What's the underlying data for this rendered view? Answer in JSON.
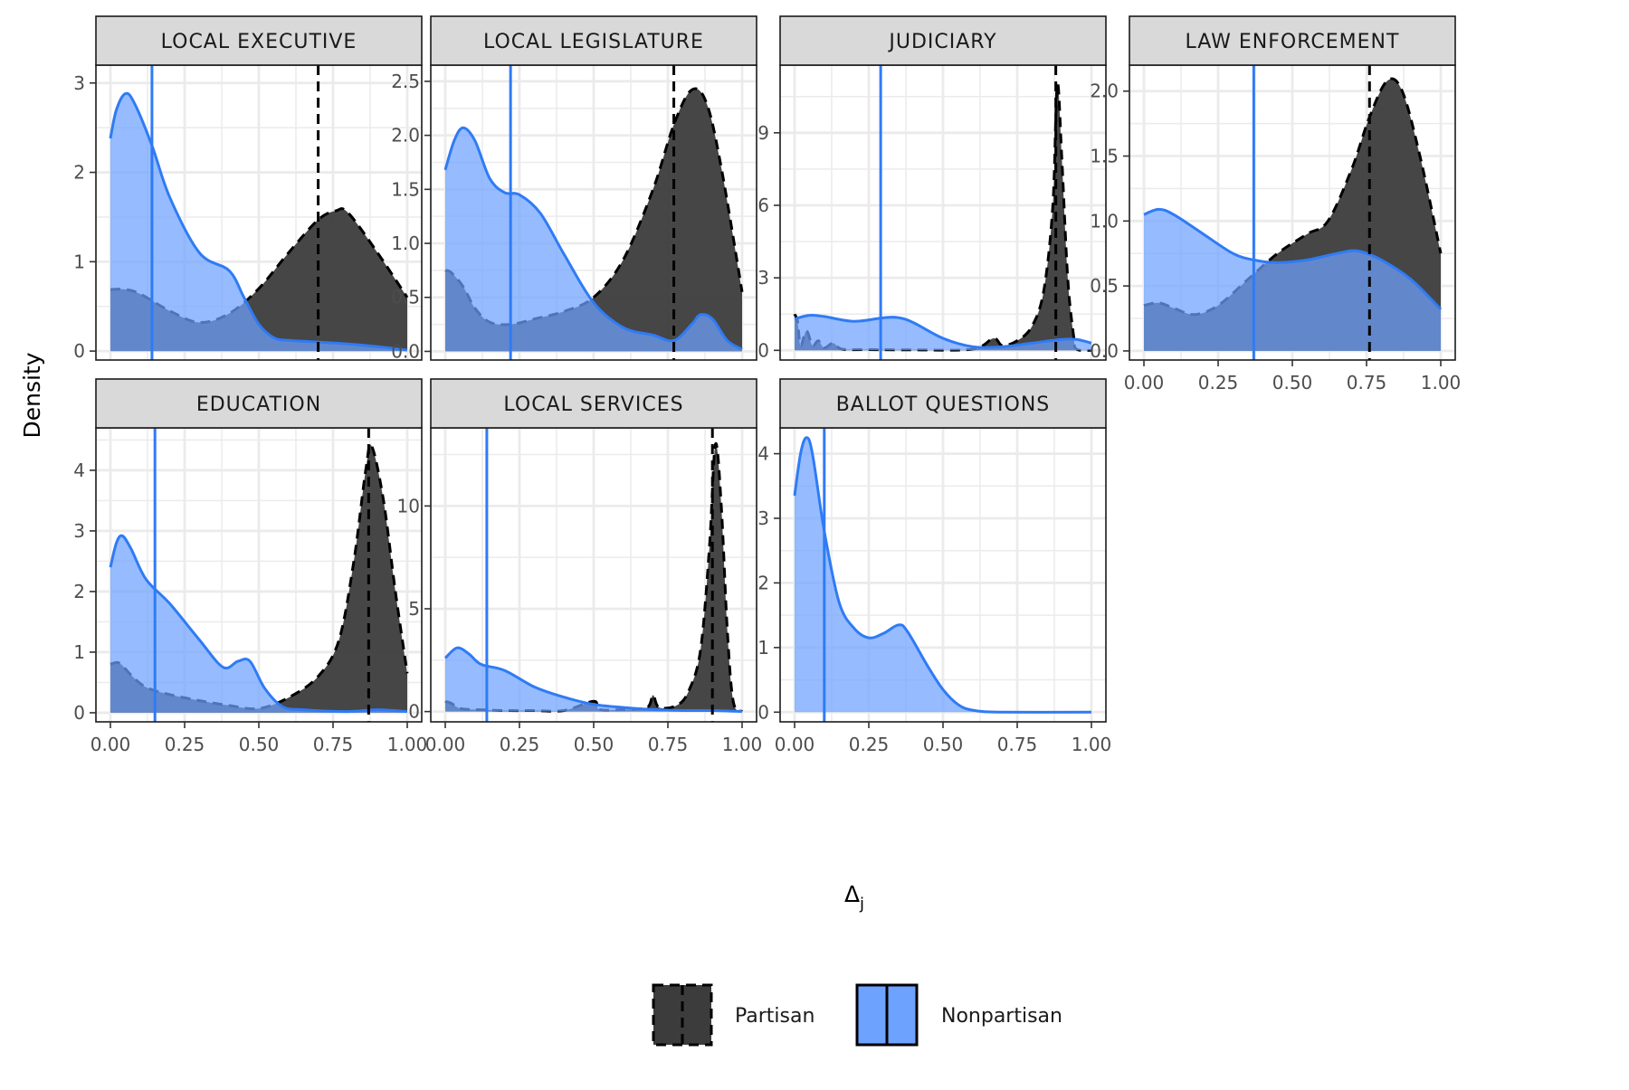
{
  "chart_data": {
    "type": "area",
    "ylabel": "Density",
    "xlabel": "Δ",
    "xlabel_sub": "j",
    "xlim": [
      0,
      1
    ],
    "x_ticks": [
      0,
      0.25,
      0.5,
      0.75,
      1.0
    ],
    "x_tick_labels": [
      "0.00",
      "0.25",
      "0.50",
      "0.75",
      "1.00"
    ],
    "legend": {
      "placement": "bottom",
      "entries": [
        {
          "key": "partisan",
          "label": "Partisan",
          "line": "dashed"
        },
        {
          "key": "nonpartisan",
          "label": "Nonpartisan",
          "line": "solid"
        }
      ]
    },
    "colors": {
      "partisan_fill": "#3c3c3c",
      "partisan_line": "#000000",
      "nonpartisan_fill": "#6ea2ff",
      "nonpartisan_line": "#2f7bf5",
      "strip": "#d9d9d9",
      "grid": "#ebebeb"
    },
    "panels": [
      {
        "title": "LOCAL EXECUTIVE",
        "ylim": [
          -0.1,
          3.2
        ],
        "y_ticks": [
          0,
          1,
          2,
          3
        ],
        "y_tick_labels": [
          "0",
          "1",
          "2",
          "3"
        ],
        "partisan_mean": 0.7,
        "nonpartisan_mean": 0.14,
        "partisan": [
          [
            0,
            0.69
          ],
          [
            0.05,
            0.69
          ],
          [
            0.1,
            0.64
          ],
          [
            0.2,
            0.45
          ],
          [
            0.3,
            0.32
          ],
          [
            0.4,
            0.42
          ],
          [
            0.5,
            0.7
          ],
          [
            0.6,
            1.1
          ],
          [
            0.7,
            1.47
          ],
          [
            0.76,
            1.57
          ],
          [
            0.8,
            1.55
          ],
          [
            0.9,
            1.1
          ],
          [
            1.0,
            0.6
          ]
        ],
        "nonpartisan": [
          [
            0,
            2.38
          ],
          [
            0.02,
            2.7
          ],
          [
            0.05,
            2.88
          ],
          [
            0.08,
            2.78
          ],
          [
            0.14,
            2.3
          ],
          [
            0.2,
            1.72
          ],
          [
            0.3,
            1.1
          ],
          [
            0.4,
            0.9
          ],
          [
            0.45,
            0.6
          ],
          [
            0.5,
            0.3
          ],
          [
            0.55,
            0.15
          ],
          [
            0.6,
            0.12
          ],
          [
            0.7,
            0.1
          ],
          [
            0.8,
            0.08
          ],
          [
            0.9,
            0.05
          ],
          [
            1.0,
            0.01
          ]
        ]
      },
      {
        "title": "LOCAL LEGISLATURE",
        "ylim": [
          -0.08,
          2.65
        ],
        "y_ticks": [
          0,
          0.5,
          1.0,
          1.5,
          2.0,
          2.5
        ],
        "y_tick_labels": [
          "0.0",
          "0.5",
          "1.0",
          "1.5",
          "2.0",
          "2.5"
        ],
        "partisan_mean": 0.77,
        "nonpartisan_mean": 0.22,
        "partisan": [
          [
            0,
            0.75
          ],
          [
            0.02,
            0.73
          ],
          [
            0.06,
            0.6
          ],
          [
            0.1,
            0.4
          ],
          [
            0.15,
            0.27
          ],
          [
            0.22,
            0.25
          ],
          [
            0.3,
            0.3
          ],
          [
            0.4,
            0.37
          ],
          [
            0.5,
            0.5
          ],
          [
            0.6,
            0.85
          ],
          [
            0.7,
            1.5
          ],
          [
            0.77,
            2.1
          ],
          [
            0.83,
            2.42
          ],
          [
            0.88,
            2.3
          ],
          [
            0.93,
            1.7
          ],
          [
            1.0,
            0.55
          ]
        ],
        "nonpartisan": [
          [
            0,
            1.68
          ],
          [
            0.03,
            1.95
          ],
          [
            0.06,
            2.07
          ],
          [
            0.1,
            1.95
          ],
          [
            0.15,
            1.6
          ],
          [
            0.2,
            1.47
          ],
          [
            0.25,
            1.45
          ],
          [
            0.32,
            1.28
          ],
          [
            0.4,
            0.9
          ],
          [
            0.5,
            0.45
          ],
          [
            0.6,
            0.22
          ],
          [
            0.7,
            0.15
          ],
          [
            0.77,
            0.1
          ],
          [
            0.83,
            0.25
          ],
          [
            0.86,
            0.34
          ],
          [
            0.9,
            0.3
          ],
          [
            0.95,
            0.1
          ],
          [
            1.0,
            0.02
          ]
        ]
      },
      {
        "title": "JUDICIARY",
        "ylim": [
          -0.4,
          11.8
        ],
        "y_ticks": [
          0,
          3,
          6,
          9
        ],
        "y_tick_labels": [
          "0",
          "3",
          "6",
          "9"
        ],
        "partisan_mean": 0.88,
        "nonpartisan_mean": 0.29,
        "partisan": [
          [
            0,
            1.5
          ],
          [
            0.01,
            1.2
          ],
          [
            0.02,
            0.2
          ],
          [
            0.04,
            0.8
          ],
          [
            0.06,
            0.2
          ],
          [
            0.08,
            0.4
          ],
          [
            0.1,
            0.1
          ],
          [
            0.13,
            0.3
          ],
          [
            0.16,
            0.05
          ],
          [
            0.25,
            0.03
          ],
          [
            0.4,
            0.02
          ],
          [
            0.6,
            0.05
          ],
          [
            0.67,
            0.5
          ],
          [
            0.7,
            0.2
          ],
          [
            0.75,
            0.4
          ],
          [
            0.8,
            1.0
          ],
          [
            0.84,
            2.5
          ],
          [
            0.87,
            6.0
          ],
          [
            0.885,
            11.0
          ],
          [
            0.9,
            8.0
          ],
          [
            0.92,
            3.0
          ],
          [
            0.94,
            0.6
          ],
          [
            0.95,
            0.05
          ],
          [
            1.0,
            0.0
          ]
        ],
        "nonpartisan": [
          [
            0,
            1.3
          ],
          [
            0.05,
            1.45
          ],
          [
            0.1,
            1.4
          ],
          [
            0.2,
            1.2
          ],
          [
            0.3,
            1.35
          ],
          [
            0.35,
            1.35
          ],
          [
            0.4,
            1.15
          ],
          [
            0.5,
            0.5
          ],
          [
            0.6,
            0.15
          ],
          [
            0.7,
            0.15
          ],
          [
            0.8,
            0.3
          ],
          [
            0.9,
            0.45
          ],
          [
            0.95,
            0.45
          ],
          [
            1.0,
            0.3
          ]
        ]
      },
      {
        "title": "LAW ENFORCEMENT",
        "ylim": [
          -0.07,
          2.2
        ],
        "y_ticks": [
          0,
          0.5,
          1.0,
          1.5,
          2.0
        ],
        "y_tick_labels": [
          "0.0",
          "0.5",
          "1.0",
          "1.5",
          "2.0"
        ],
        "partisan_mean": 0.76,
        "nonpartisan_mean": 0.37,
        "partisan": [
          [
            0,
            0.35
          ],
          [
            0.05,
            0.37
          ],
          [
            0.1,
            0.33
          ],
          [
            0.17,
            0.28
          ],
          [
            0.25,
            0.35
          ],
          [
            0.35,
            0.55
          ],
          [
            0.45,
            0.75
          ],
          [
            0.55,
            0.9
          ],
          [
            0.62,
            1.0
          ],
          [
            0.7,
            1.4
          ],
          [
            0.76,
            1.8
          ],
          [
            0.82,
            2.08
          ],
          [
            0.87,
            2.0
          ],
          [
            0.93,
            1.5
          ],
          [
            1.0,
            0.75
          ]
        ],
        "nonpartisan": [
          [
            0,
            1.05
          ],
          [
            0.05,
            1.09
          ],
          [
            0.1,
            1.05
          ],
          [
            0.2,
            0.9
          ],
          [
            0.3,
            0.75
          ],
          [
            0.37,
            0.7
          ],
          [
            0.45,
            0.68
          ],
          [
            0.55,
            0.7
          ],
          [
            0.65,
            0.75
          ],
          [
            0.72,
            0.77
          ],
          [
            0.8,
            0.7
          ],
          [
            0.9,
            0.55
          ],
          [
            1.0,
            0.32
          ]
        ]
      },
      {
        "title": "EDUCATION",
        "ylim": [
          -0.15,
          4.7
        ],
        "y_ticks": [
          0,
          1,
          2,
          3,
          4
        ],
        "y_tick_labels": [
          "0",
          "1",
          "2",
          "3",
          "4"
        ],
        "partisan_mean": 0.87,
        "nonpartisan_mean": 0.15,
        "partisan": [
          [
            0,
            0.8
          ],
          [
            0.03,
            0.82
          ],
          [
            0.07,
            0.62
          ],
          [
            0.12,
            0.42
          ],
          [
            0.2,
            0.3
          ],
          [
            0.3,
            0.2
          ],
          [
            0.4,
            0.12
          ],
          [
            0.5,
            0.07
          ],
          [
            0.6,
            0.25
          ],
          [
            0.7,
            0.6
          ],
          [
            0.77,
            1.2
          ],
          [
            0.82,
            2.5
          ],
          [
            0.86,
            4.0
          ],
          [
            0.88,
            4.4
          ],
          [
            0.92,
            3.5
          ],
          [
            0.96,
            2.0
          ],
          [
            1.0,
            0.65
          ]
        ],
        "nonpartisan": [
          [
            0,
            2.4
          ],
          [
            0.02,
            2.8
          ],
          [
            0.04,
            2.92
          ],
          [
            0.07,
            2.7
          ],
          [
            0.12,
            2.2
          ],
          [
            0.2,
            1.8
          ],
          [
            0.3,
            1.2
          ],
          [
            0.38,
            0.75
          ],
          [
            0.43,
            0.85
          ],
          [
            0.47,
            0.85
          ],
          [
            0.52,
            0.4
          ],
          [
            0.58,
            0.1
          ],
          [
            0.65,
            0.05
          ],
          [
            0.8,
            0.02
          ],
          [
            0.9,
            0.05
          ],
          [
            1.0,
            0.02
          ]
        ]
      },
      {
        "title": "LOCAL SERVICES",
        "ylim": [
          -0.5,
          13.8
        ],
        "y_ticks": [
          0,
          5,
          10
        ],
        "y_tick_labels": [
          "0",
          "5",
          "10"
        ],
        "partisan_mean": 0.9,
        "nonpartisan_mean": 0.14,
        "partisan": [
          [
            0,
            0.5
          ],
          [
            0.02,
            0.4
          ],
          [
            0.05,
            0.15
          ],
          [
            0.1,
            0.1
          ],
          [
            0.2,
            0.05
          ],
          [
            0.3,
            0.05
          ],
          [
            0.4,
            0.05
          ],
          [
            0.5,
            0.5
          ],
          [
            0.52,
            0.1
          ],
          [
            0.6,
            0.1
          ],
          [
            0.68,
            0.2
          ],
          [
            0.7,
            0.8
          ],
          [
            0.72,
            0.2
          ],
          [
            0.78,
            0.3
          ],
          [
            0.82,
            1.0
          ],
          [
            0.86,
            3.0
          ],
          [
            0.89,
            8.0
          ],
          [
            0.91,
            13.0
          ],
          [
            0.93,
            10.0
          ],
          [
            0.95,
            4.0
          ],
          [
            0.97,
            0.5
          ],
          [
            1.0,
            0.0
          ]
        ],
        "nonpartisan": [
          [
            0,
            2.6
          ],
          [
            0.04,
            3.1
          ],
          [
            0.08,
            2.8
          ],
          [
            0.12,
            2.3
          ],
          [
            0.2,
            2.0
          ],
          [
            0.3,
            1.2
          ],
          [
            0.4,
            0.7
          ],
          [
            0.5,
            0.35
          ],
          [
            0.6,
            0.2
          ],
          [
            0.7,
            0.1
          ],
          [
            0.8,
            0.05
          ],
          [
            0.9,
            0.05
          ],
          [
            1.0,
            0.0
          ]
        ]
      },
      {
        "title": "BALLOT QUESTIONS",
        "ylim": [
          -0.15,
          4.4
        ],
        "y_ticks": [
          0,
          1,
          2,
          3,
          4
        ],
        "y_tick_labels": [
          "0",
          "1",
          "2",
          "3",
          "4"
        ],
        "partisan_mean": null,
        "nonpartisan_mean": 0.1,
        "partisan": [],
        "nonpartisan": [
          [
            0,
            3.35
          ],
          [
            0.02,
            4.0
          ],
          [
            0.04,
            4.25
          ],
          [
            0.06,
            4.0
          ],
          [
            0.1,
            2.8
          ],
          [
            0.15,
            1.7
          ],
          [
            0.2,
            1.3
          ],
          [
            0.25,
            1.15
          ],
          [
            0.3,
            1.22
          ],
          [
            0.35,
            1.35
          ],
          [
            0.38,
            1.25
          ],
          [
            0.45,
            0.7
          ],
          [
            0.5,
            0.35
          ],
          [
            0.55,
            0.12
          ],
          [
            0.6,
            0.03
          ],
          [
            0.7,
            0.0
          ],
          [
            1.0,
            0.0
          ]
        ]
      }
    ]
  }
}
